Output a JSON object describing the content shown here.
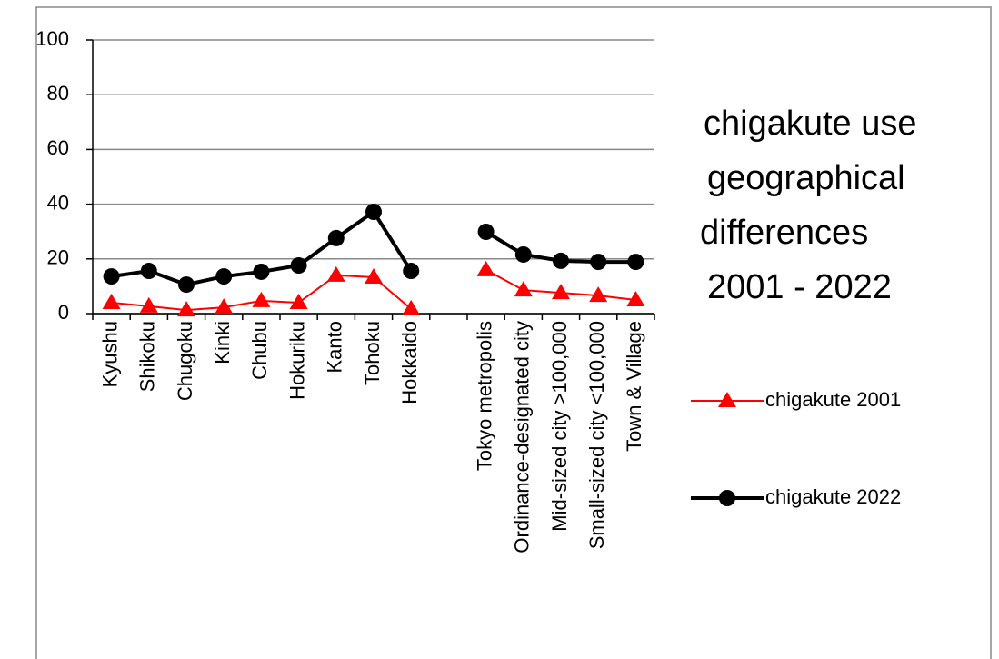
{
  "chart_data": {
    "type": "line",
    "title": [
      "chigakute use",
      "geographical",
      "differences",
      "2001 - 2022"
    ],
    "categories": [
      "Kyushu",
      "Shikoku",
      "Chugoku",
      "Kinki",
      "Chubu",
      "Hokuriku",
      "Kanto",
      "Tohoku",
      "Hokkaido",
      null,
      "Tokyo metropolis",
      "Ordinance-designated city",
      "Mid-sized city >100,000",
      "Small-sized city <100,000",
      "Town & Village"
    ],
    "series": [
      {
        "name": "chigakute 2001",
        "color": "#ff0000",
        "marker": "triangle",
        "values": [
          4,
          2.7,
          1.3,
          2.3,
          4.7,
          4,
          14,
          13.3,
          1.7,
          null,
          16,
          8.6,
          7.6,
          6.6,
          5
        ]
      },
      {
        "name": "chigakute 2022",
        "color": "#000000",
        "marker": "circle",
        "values": [
          13.6,
          15.6,
          10.6,
          13.6,
          15.3,
          17.6,
          27.6,
          37.2,
          15.6,
          null,
          29.9,
          21.6,
          19.3,
          18.9,
          18.9
        ]
      }
    ],
    "ylim": [
      0,
      100
    ],
    "yticks": [
      0,
      20,
      40,
      60,
      80,
      100
    ],
    "grid": true,
    "legend": "right"
  }
}
